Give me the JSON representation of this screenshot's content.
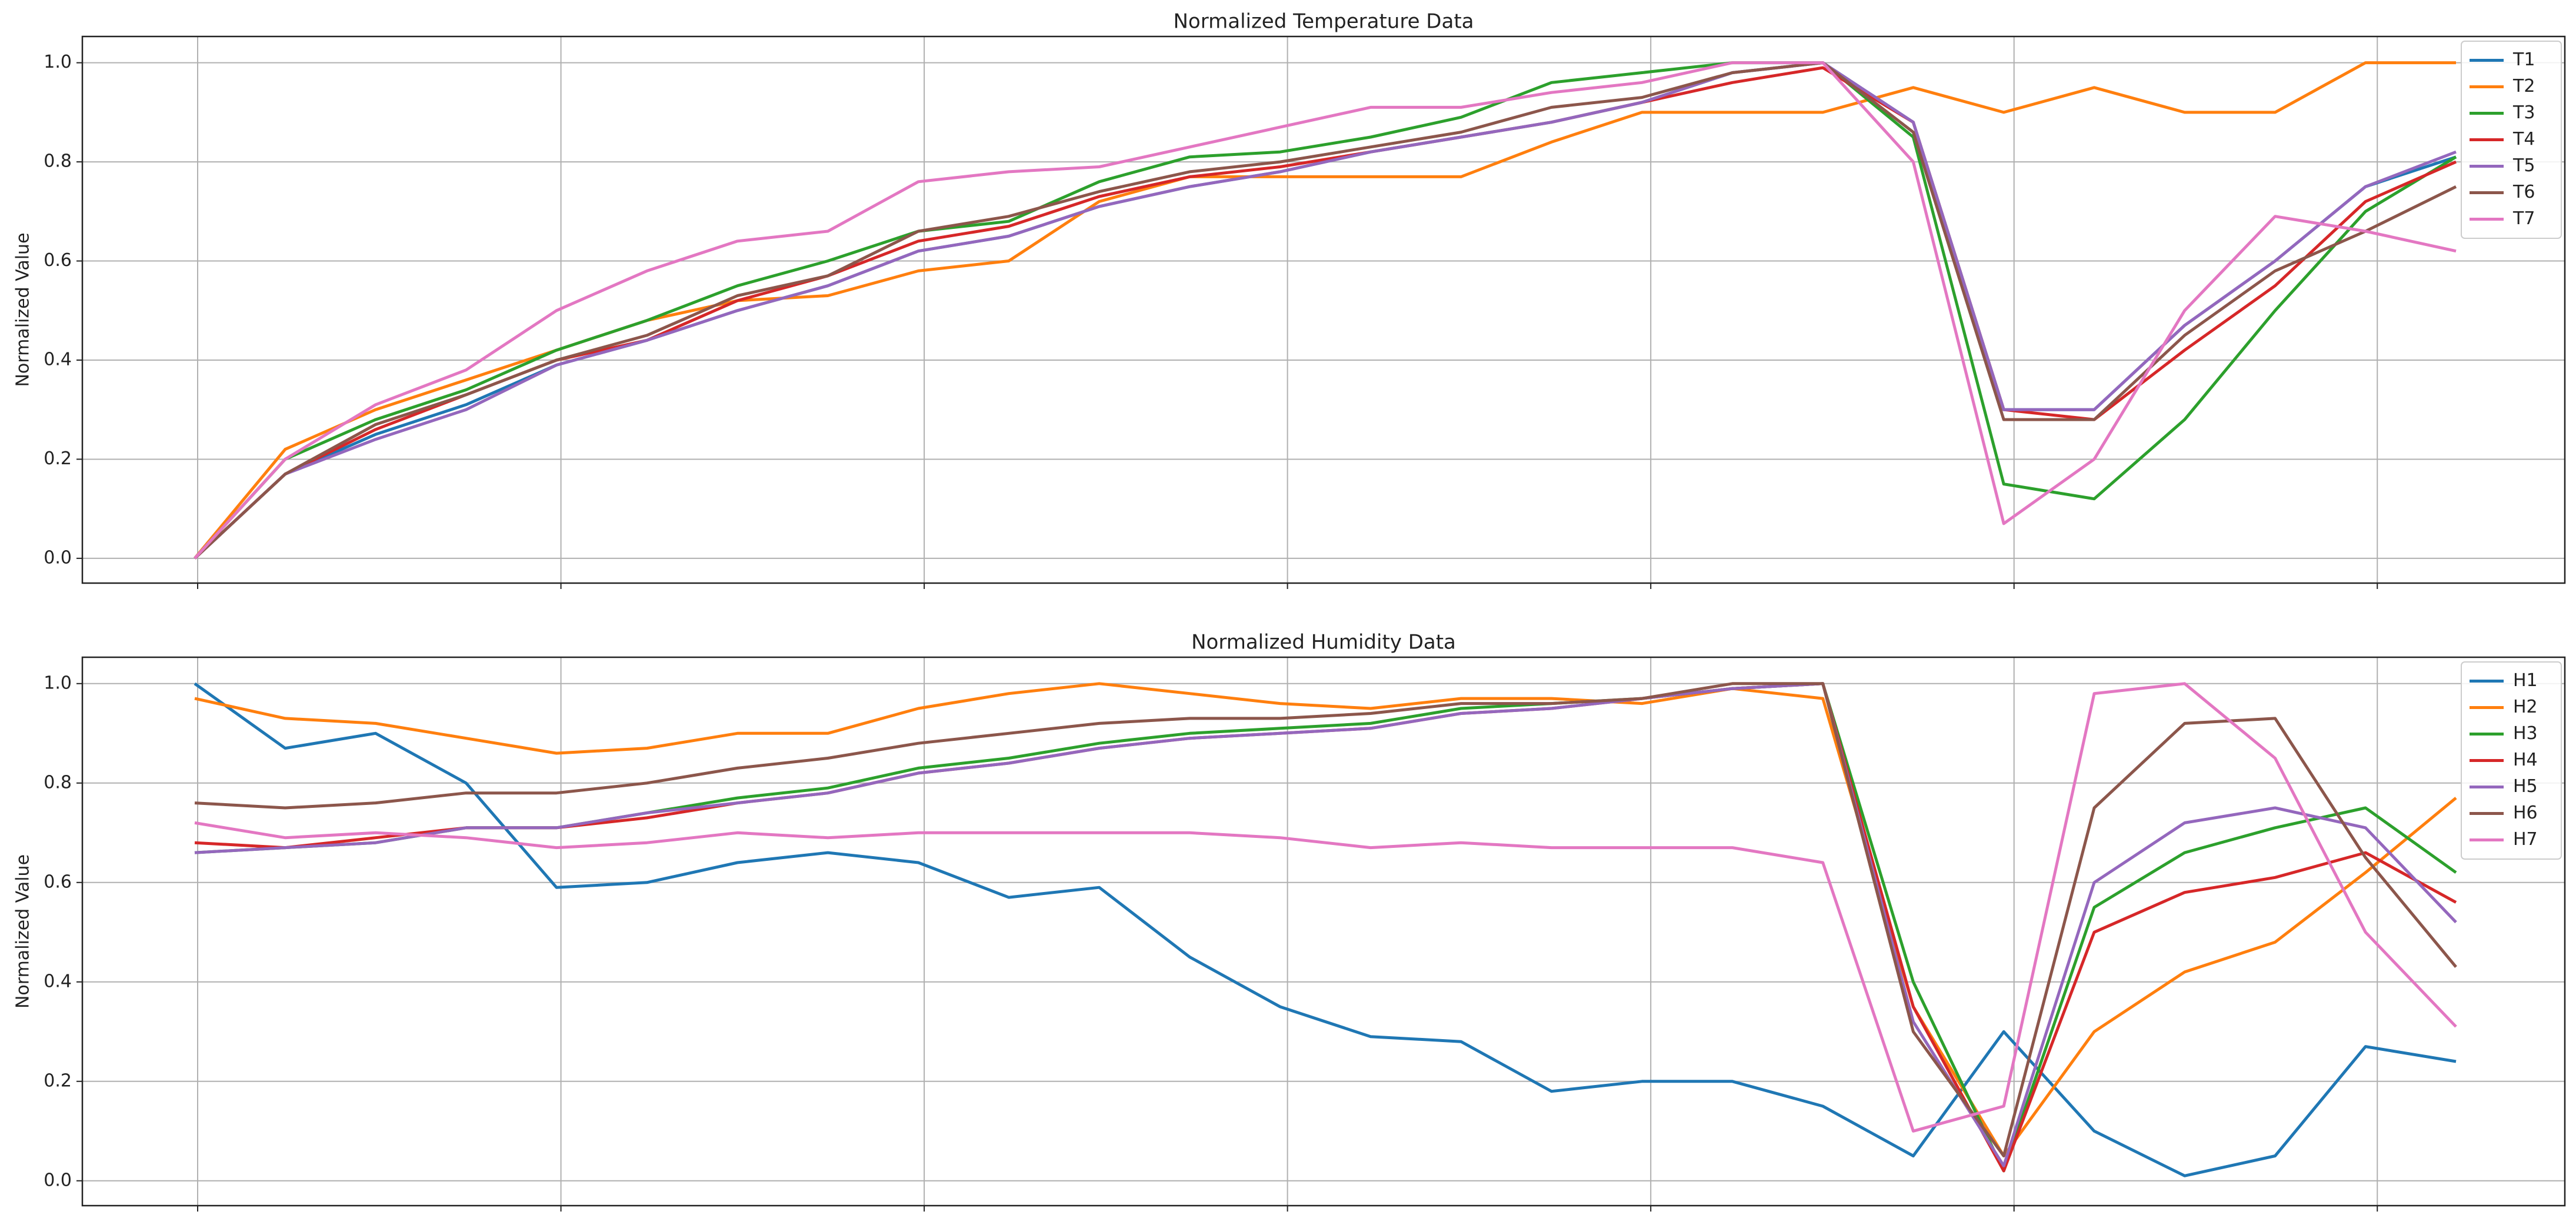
{
  "chart_data": [
    {
      "type": "line",
      "title": "Normalized Temperature Data",
      "ylabel": "Normalized Value",
      "categories": [
        null,
        null,
        null,
        null,
        null,
        null,
        null,
        null,
        null,
        null,
        null,
        null,
        null,
        null,
        null,
        null,
        null,
        null,
        null,
        null,
        null,
        null,
        null,
        null,
        null,
        null
      ],
      "series": [
        {
          "name": "T1",
          "color": "#1f77b4",
          "values": [
            0,
            0.17,
            0.25,
            0.31,
            0.39,
            0.44,
            0.5,
            0.55,
            0.62,
            0.65,
            0.71,
            0.75,
            0.78,
            0.82,
            0.85,
            0.88,
            0.92,
            0.98,
            1.0,
            0.88,
            0.3,
            0.3,
            0.47,
            0.6,
            0.75,
            0.81
          ]
        },
        {
          "name": "T2",
          "color": "#ff7f0e",
          "values": [
            0,
            0.22,
            0.3,
            0.36,
            0.42,
            0.48,
            0.52,
            0.53,
            0.58,
            0.6,
            0.72,
            0.77,
            0.77,
            0.77,
            0.77,
            0.84,
            0.9,
            0.9,
            0.9,
            0.95,
            0.9,
            0.95,
            0.9,
            0.9,
            1.0,
            1.0
          ]
        },
        {
          "name": "T3",
          "color": "#2ca02c",
          "values": [
            0,
            0.2,
            0.28,
            0.34,
            0.42,
            0.48,
            0.55,
            0.6,
            0.66,
            0.68,
            0.76,
            0.81,
            0.82,
            0.85,
            0.89,
            0.96,
            0.98,
            1.0,
            1.0,
            0.85,
            0.15,
            0.12,
            0.28,
            0.5,
            0.7,
            0.81
          ]
        },
        {
          "name": "T4",
          "color": "#d62728",
          "values": [
            0,
            0.17,
            0.26,
            0.33,
            0.4,
            0.44,
            0.52,
            0.57,
            0.64,
            0.67,
            0.73,
            0.77,
            0.79,
            0.82,
            0.85,
            0.88,
            0.92,
            0.96,
            0.99,
            0.88,
            0.3,
            0.28,
            0.42,
            0.55,
            0.72,
            0.8
          ]
        },
        {
          "name": "T5",
          "color": "#9467bd",
          "values": [
            0,
            0.17,
            0.24,
            0.3,
            0.39,
            0.44,
            0.5,
            0.55,
            0.62,
            0.65,
            0.71,
            0.75,
            0.78,
            0.82,
            0.85,
            0.88,
            0.92,
            0.98,
            1.0,
            0.88,
            0.3,
            0.3,
            0.47,
            0.6,
            0.75,
            0.82
          ]
        },
        {
          "name": "T6",
          "color": "#8c564b",
          "values": [
            0,
            0.17,
            0.27,
            0.33,
            0.4,
            0.45,
            0.53,
            0.57,
            0.66,
            0.69,
            0.74,
            0.78,
            0.8,
            0.83,
            0.86,
            0.91,
            0.93,
            0.98,
            1.0,
            0.86,
            0.28,
            0.28,
            0.45,
            0.58,
            0.66,
            0.75
          ]
        },
        {
          "name": "T7",
          "color": "#e377c2",
          "values": [
            0,
            0.2,
            0.31,
            0.38,
            0.5,
            0.58,
            0.64,
            0.66,
            0.76,
            0.78,
            0.79,
            0.83,
            0.87,
            0.91,
            0.91,
            0.94,
            0.96,
            1.0,
            1.0,
            0.8,
            0.07,
            0.2,
            0.5,
            0.69,
            0.66,
            0.62
          ]
        }
      ],
      "ylim": [
        -0.05,
        1.053
      ],
      "yticks": [
        {
          "value": 0,
          "label": "0.0"
        },
        0.2,
        0.4,
        0.6,
        0.8,
        {
          "value": 1,
          "label": "1.0"
        }
      ],
      "grid": true,
      "legend": "upper right"
    },
    {
      "type": "line",
      "title": "Normalized Humidity Data",
      "ylabel": "Normalized Value",
      "categories": [
        null,
        null,
        null,
        null,
        null,
        null,
        null,
        null,
        null,
        null,
        null,
        null,
        null,
        null,
        null,
        null,
        null,
        null,
        null,
        null,
        null,
        null,
        null,
        null,
        null,
        null
      ],
      "series": [
        {
          "name": "H1",
          "color": "#1f77b4",
          "values": [
            1.0,
            0.87,
            0.9,
            0.8,
            0.59,
            0.6,
            0.64,
            0.66,
            0.64,
            0.57,
            0.59,
            0.45,
            0.35,
            0.29,
            0.28,
            0.18,
            0.2,
            0.2,
            0.15,
            0.05,
            0.3,
            0.1,
            0.01,
            0.05,
            0.27,
            0.24
          ]
        },
        {
          "name": "H2",
          "color": "#ff7f0e",
          "values": [
            0.97,
            0.93,
            0.92,
            0.89,
            0.86,
            0.87,
            0.9,
            0.9,
            0.95,
            0.98,
            1.0,
            0.98,
            0.96,
            0.95,
            0.97,
            0.97,
            0.96,
            0.99,
            0.97,
            0.35,
            0.05,
            0.3,
            0.42,
            0.48,
            0.62,
            0.77
          ]
        },
        {
          "name": "H3",
          "color": "#2ca02c",
          "values": [
            0.66,
            0.67,
            0.68,
            0.71,
            0.71,
            0.74,
            0.77,
            0.79,
            0.83,
            0.85,
            0.88,
            0.9,
            0.91,
            0.92,
            0.95,
            0.96,
            0.97,
            0.99,
            1.0,
            0.4,
            0.02,
            0.55,
            0.66,
            0.71,
            0.75,
            0.62
          ]
        },
        {
          "name": "H4",
          "color": "#d62728",
          "values": [
            0.68,
            0.67,
            0.69,
            0.71,
            0.71,
            0.73,
            0.76,
            0.78,
            0.82,
            0.84,
            0.87,
            0.89,
            0.9,
            0.91,
            0.94,
            0.95,
            0.97,
            0.99,
            1.0,
            0.35,
            0.02,
            0.5,
            0.58,
            0.61,
            0.66,
            0.56
          ]
        },
        {
          "name": "H5",
          "color": "#9467bd",
          "values": [
            0.66,
            0.67,
            0.68,
            0.71,
            0.71,
            0.74,
            0.76,
            0.78,
            0.82,
            0.84,
            0.87,
            0.89,
            0.9,
            0.91,
            0.94,
            0.95,
            0.97,
            0.99,
            1.0,
            0.32,
            0.03,
            0.6,
            0.72,
            0.75,
            0.71,
            0.52
          ]
        },
        {
          "name": "H6",
          "color": "#8c564b",
          "values": [
            0.76,
            0.75,
            0.76,
            0.78,
            0.78,
            0.8,
            0.83,
            0.85,
            0.88,
            0.9,
            0.92,
            0.93,
            0.93,
            0.94,
            0.96,
            0.96,
            0.97,
            1.0,
            1.0,
            0.3,
            0.05,
            0.75,
            0.92,
            0.93,
            0.65,
            0.43
          ]
        },
        {
          "name": "H7",
          "color": "#e377c2",
          "values": [
            0.72,
            0.69,
            0.7,
            0.69,
            0.67,
            0.68,
            0.7,
            0.69,
            0.7,
            0.7,
            0.7,
            0.7,
            0.69,
            0.67,
            0.68,
            0.67,
            0.67,
            0.67,
            0.64,
            0.1,
            0.15,
            0.98,
            1.0,
            0.85,
            0.5,
            0.31
          ]
        }
      ],
      "ylim": [
        -0.05,
        1.053
      ],
      "yticks": [
        {
          "value": 0,
          "label": "0.0"
        },
        0.2,
        0.4,
        0.6,
        0.8,
        {
          "value": 1,
          "label": "1.0"
        }
      ],
      "grid": true,
      "legend": "upper right"
    }
  ]
}
